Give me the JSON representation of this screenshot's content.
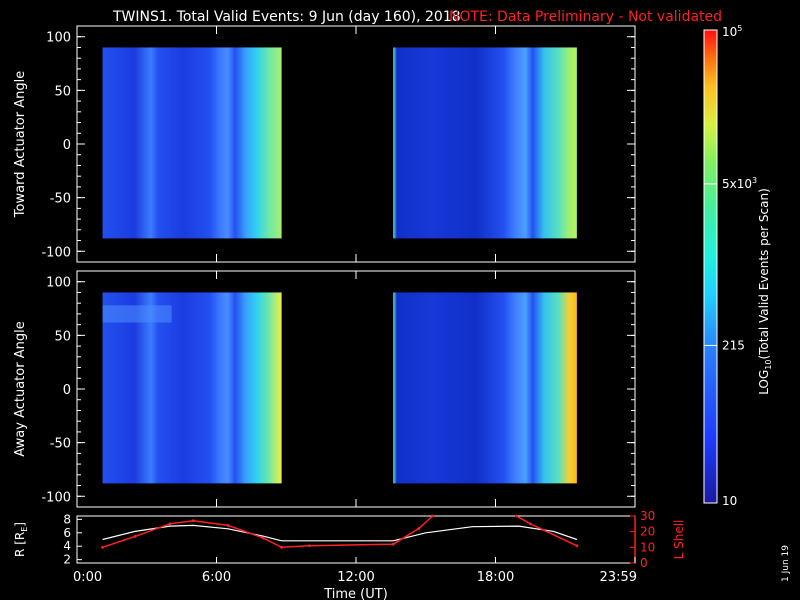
{
  "header": {
    "title": "TWINS1. Total Valid Events:  9 Jun (day 160), 2018",
    "note": "NOTE: Data Preliminary - Not validated"
  },
  "footer": {
    "stamp": "1 Jun 19"
  },
  "colors": {
    "background": "#000000",
    "axes": "#ffffff",
    "note": "#ff2020",
    "r_line": "#ffffff",
    "lshell_line": "#ff2020"
  },
  "chart_data": [
    {
      "type": "heatmap",
      "panel": "toward",
      "ylabel": "Toward Actuator Angle",
      "xlim": [
        0,
        24
      ],
      "ylim": [
        -110,
        110
      ],
      "yticks": [
        100,
        50,
        0,
        -50,
        -100
      ],
      "data_extent": {
        "angle": [
          -88,
          90
        ]
      },
      "blocks_hours": [
        [
          1.1,
          8.8
        ],
        [
          13.6,
          21.5
        ]
      ],
      "colormap": "rainbow"
    },
    {
      "type": "heatmap",
      "panel": "away",
      "ylabel": "Away Actuator Angle",
      "xlim": [
        0,
        24
      ],
      "ylim": [
        -110,
        110
      ],
      "yticks": [
        100,
        50,
        0,
        -50,
        -100
      ],
      "data_extent": {
        "angle": [
          -88,
          90
        ]
      },
      "blocks_hours": [
        [
          1.1,
          8.8
        ],
        [
          13.6,
          21.5
        ]
      ],
      "colormap": "rainbow"
    },
    {
      "type": "line",
      "panel": "orbit",
      "xlabel": "Time (UT)",
      "xticks": [
        "0:00",
        "6:00",
        "12:00",
        "18:00",
        "23:59"
      ],
      "xlim": [
        0,
        24
      ],
      "left_axis": {
        "label": "R [R",
        "label_sub": "E",
        "label_end": "]",
        "ylim": [
          1.5,
          8.5
        ],
        "ticks": [
          "8",
          "6",
          "4",
          "2"
        ]
      },
      "right_axis": {
        "label": "L Shell",
        "ylim": [
          0,
          30
        ],
        "ticks": [
          "30",
          "20",
          "10",
          "0"
        ]
      },
      "series": [
        {
          "axis": "left",
          "x": [
            1.1,
            2.5,
            4.0,
            5.0,
            6.5,
            8.0,
            8.8,
            10.0,
            13.6,
            15.0,
            17.0,
            19.0,
            20.5,
            21.5
          ],
          "y": [
            5.0,
            6.2,
            7.0,
            7.1,
            6.6,
            5.5,
            4.8,
            4.8,
            4.8,
            6.0,
            6.9,
            7.0,
            6.2,
            5.0
          ]
        },
        {
          "axis": "right",
          "x": [
            1.1,
            2.5,
            4.0,
            5.0,
            6.5,
            8.0,
            8.8,
            10.0,
            13.6,
            14.7,
            15.3,
            18.9,
            19.5,
            21.5
          ],
          "y": [
            10,
            17,
            25,
            27,
            24,
            16,
            10,
            11,
            12,
            22,
            30,
            30,
            25,
            11
          ]
        }
      ]
    }
  ],
  "colorbar": {
    "label": "LOG",
    "label_sub": "10",
    "label_end": "(Total Valid Events per Scan)",
    "scale": "log",
    "range": [
      10,
      100000
    ],
    "ticks": [
      {
        "value": 10,
        "text": "10"
      },
      {
        "value": 215,
        "text": "215"
      },
      {
        "value": 5000,
        "text": "5x10",
        "sup": "3"
      },
      {
        "value": 100000,
        "text": "10",
        "sup": "5"
      }
    ]
  }
}
